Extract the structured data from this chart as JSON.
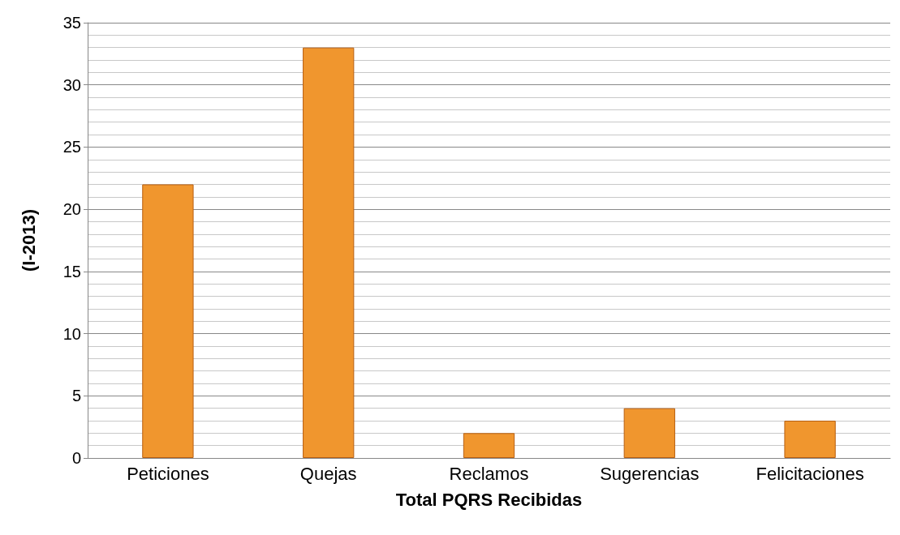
{
  "chart_data": {
    "type": "bar",
    "xlabel": "Total PQRS Recibidas",
    "ylabel": "(I-2013)",
    "categories": [
      "Peticiones",
      "Quejas",
      "Reclamos",
      "Sugerencias",
      "Felicitaciones"
    ],
    "values": [
      22,
      33,
      2,
      4,
      3
    ],
    "color": "#f0962e",
    "ylim": [
      0,
      35
    ],
    "yticks": [
      0,
      5,
      10,
      15,
      20,
      25,
      30,
      35
    ],
    "grid": "y"
  }
}
